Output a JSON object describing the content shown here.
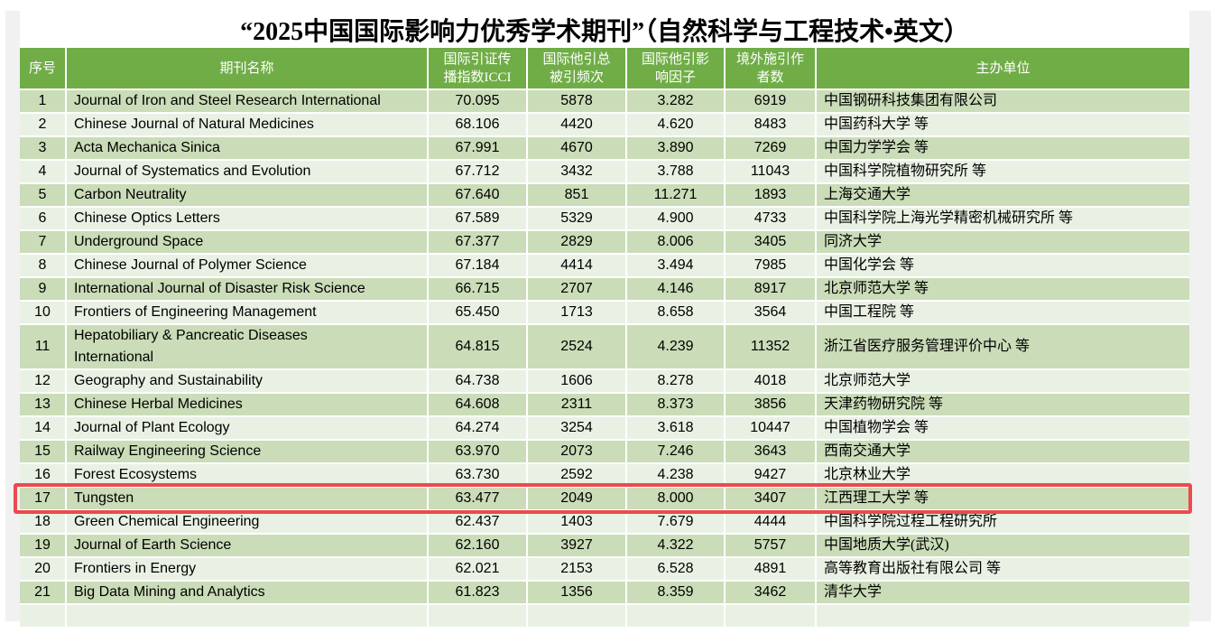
{
  "page": {
    "title": "“2025中国国际影响力优秀学术期刊”（自然科学与工程技术•英文）"
  },
  "colors": {
    "header_green": "#70ad47",
    "row_dark": "#cadcb8",
    "row_light": "#e9f1e4",
    "highlight_red": "#ec4a4d",
    "page_bg": "#f1f1f1"
  },
  "table": {
    "columns": [
      {
        "key": "rank",
        "label": "序号"
      },
      {
        "key": "name",
        "label": "期刊名称"
      },
      {
        "key": "icci",
        "label": "国际引证传\n播指数ICCI"
      },
      {
        "key": "total_cites",
        "label": "国际他引总\n被引频次"
      },
      {
        "key": "impact_factor",
        "label": "国际他引影\n响因子"
      },
      {
        "key": "foreign_authors",
        "label": "境外施引作\n者数"
      },
      {
        "key": "sponsor",
        "label": "主办单位"
      }
    ],
    "rows": [
      {
        "rank": "1",
        "name": "Journal of Iron and Steel Research International",
        "icci": "70.095",
        "total_cites": "5878",
        "impact_factor": "3.282",
        "foreign_authors": "6919",
        "sponsor": "中国钢研科技集团有限公司",
        "highlighted": false
      },
      {
        "rank": "2",
        "name": "Chinese Journal of Natural Medicines",
        "icci": "68.106",
        "total_cites": "4420",
        "impact_factor": "4.620",
        "foreign_authors": "8483",
        "sponsor": "中国药科大学 等",
        "highlighted": false
      },
      {
        "rank": "3",
        "name": "Acta Mechanica Sinica",
        "icci": "67.991",
        "total_cites": "4670",
        "impact_factor": "3.890",
        "foreign_authors": "7269",
        "sponsor": "中国力学学会 等",
        "highlighted": false
      },
      {
        "rank": "4",
        "name": "Journal of Systematics and Evolution",
        "icci": "67.712",
        "total_cites": "3432",
        "impact_factor": "3.788",
        "foreign_authors": "11043",
        "sponsor": "中国科学院植物研究所 等",
        "highlighted": false
      },
      {
        "rank": "5",
        "name": "Carbon Neutrality",
        "icci": "67.640",
        "total_cites": "851",
        "impact_factor": "11.271",
        "foreign_authors": "1893",
        "sponsor": "上海交通大学",
        "highlighted": false
      },
      {
        "rank": "6",
        "name": "Chinese Optics Letters",
        "icci": "67.589",
        "total_cites": "5329",
        "impact_factor": "4.900",
        "foreign_authors": "4733",
        "sponsor": "中国科学院上海光学精密机械研究所 等",
        "highlighted": false
      },
      {
        "rank": "7",
        "name": "Underground Space",
        "icci": "67.377",
        "total_cites": "2829",
        "impact_factor": "8.006",
        "foreign_authors": "3405",
        "sponsor": "同济大学",
        "highlighted": false
      },
      {
        "rank": "8",
        "name": "Chinese Journal of Polymer Science",
        "icci": "67.184",
        "total_cites": "4414",
        "impact_factor": "3.494",
        "foreign_authors": "7985",
        "sponsor": "中国化学会 等",
        "highlighted": false
      },
      {
        "rank": "9",
        "name": "International Journal of Disaster Risk Science",
        "icci": "66.715",
        "total_cites": "2707",
        "impact_factor": "4.146",
        "foreign_authors": "8917",
        "sponsor": "北京师范大学 等",
        "highlighted": false
      },
      {
        "rank": "10",
        "name": "Frontiers of Engineering Management",
        "icci": "65.450",
        "total_cites": "1713",
        "impact_factor": "8.658",
        "foreign_authors": "3564",
        "sponsor": "中国工程院 等",
        "highlighted": false
      },
      {
        "rank": "11",
        "name": "Hepatobiliary & Pancreatic Diseases\nInternational",
        "icci": "64.815",
        "total_cites": "2524",
        "impact_factor": "4.239",
        "foreign_authors": "11352",
        "sponsor": "浙江省医疗服务管理评价中心 等",
        "highlighted": false
      },
      {
        "rank": "12",
        "name": "Geography and Sustainability",
        "icci": "64.738",
        "total_cites": "1606",
        "impact_factor": "8.278",
        "foreign_authors": "4018",
        "sponsor": "北京师范大学",
        "highlighted": false
      },
      {
        "rank": "13",
        "name": "Chinese Herbal Medicines",
        "icci": "64.608",
        "total_cites": "2311",
        "impact_factor": "8.373",
        "foreign_authors": "3856",
        "sponsor": "天津药物研究院 等",
        "highlighted": false
      },
      {
        "rank": "14",
        "name": "Journal of Plant Ecology",
        "icci": "64.274",
        "total_cites": "3254",
        "impact_factor": "3.618",
        "foreign_authors": "10447",
        "sponsor": "中国植物学会 等",
        "highlighted": false
      },
      {
        "rank": "15",
        "name": "Railway Engineering Science",
        "icci": "63.970",
        "total_cites": "2073",
        "impact_factor": "7.246",
        "foreign_authors": "3643",
        "sponsor": "西南交通大学",
        "highlighted": false
      },
      {
        "rank": "16",
        "name": "Forest Ecosystems",
        "icci": "63.730",
        "total_cites": "2592",
        "impact_factor": "4.238",
        "foreign_authors": "9427",
        "sponsor": "北京林业大学",
        "highlighted": false
      },
      {
        "rank": "17",
        "name": "Tungsten",
        "icci": "63.477",
        "total_cites": "2049",
        "impact_factor": "8.000",
        "foreign_authors": "3407",
        "sponsor": "江西理工大学 等",
        "highlighted": true
      },
      {
        "rank": "18",
        "name": "Green Chemical Engineering",
        "icci": "62.437",
        "total_cites": "1403",
        "impact_factor": "7.679",
        "foreign_authors": "4444",
        "sponsor": "中国科学院过程工程研究所",
        "highlighted": false
      },
      {
        "rank": "19",
        "name": "Journal of Earth Science",
        "icci": "62.160",
        "total_cites": "3927",
        "impact_factor": "4.322",
        "foreign_authors": "5757",
        "sponsor": "中国地质大学(武汉)",
        "highlighted": false
      },
      {
        "rank": "20",
        "name": "Frontiers in Energy",
        "icci": "62.021",
        "total_cites": "2153",
        "impact_factor": "6.528",
        "foreign_authors": "4891",
        "sponsor": "高等教育出版社有限公司 等",
        "highlighted": false
      },
      {
        "rank": "21",
        "name": "Big Data Mining and Analytics",
        "icci": "61.823",
        "total_cites": "1356",
        "impact_factor": "8.359",
        "foreign_authors": "3462",
        "sponsor": "清华大学",
        "highlighted": false
      }
    ]
  }
}
